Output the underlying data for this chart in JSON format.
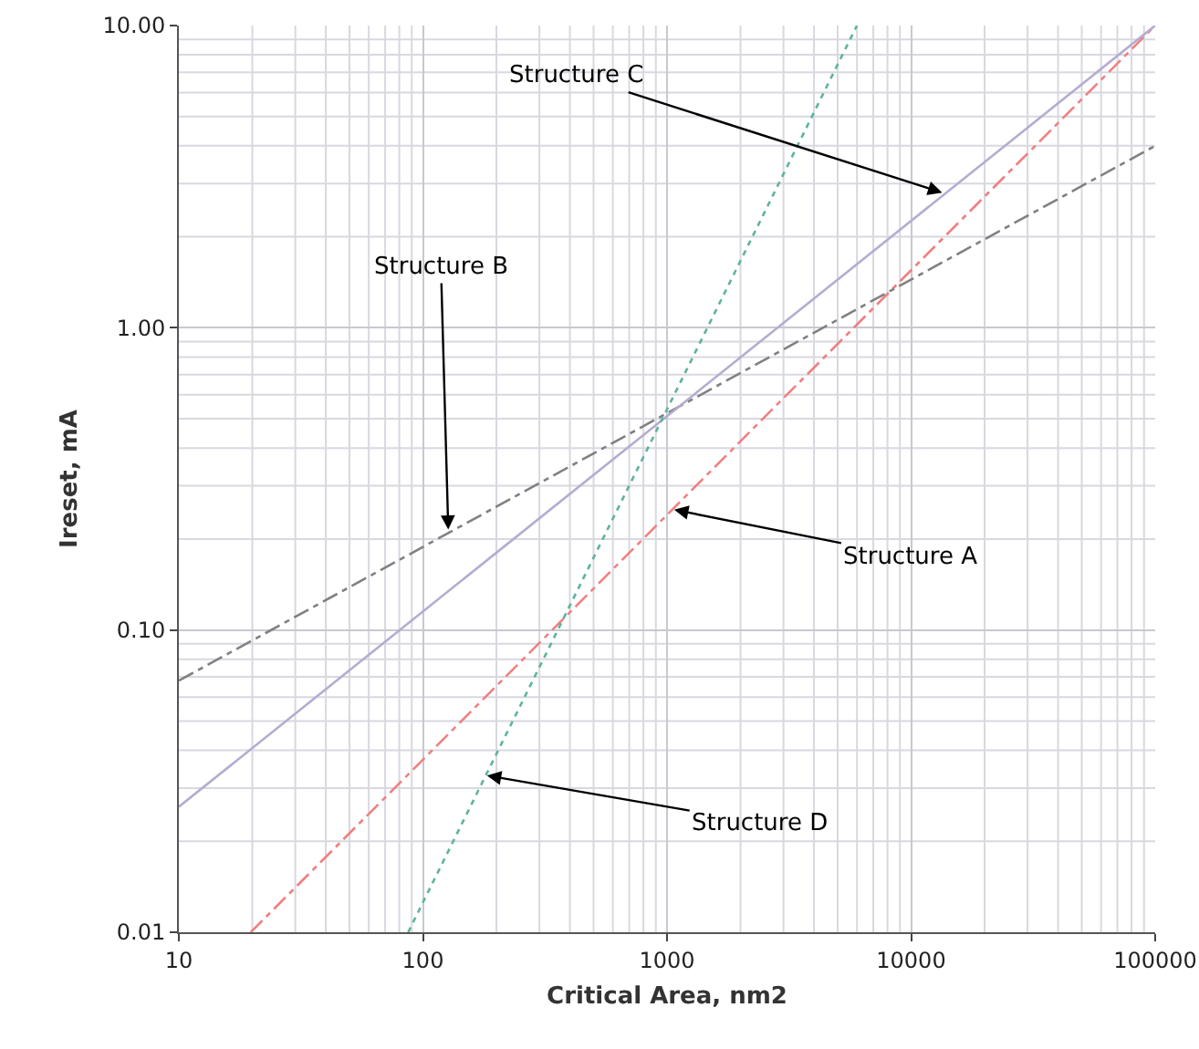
{
  "chart_data": {
    "type": "line",
    "xlabel": "Critical Area, nm2",
    "ylabel": "Ireset, mA",
    "log": "xy",
    "grid": true,
    "marker": "none",
    "xlim": [
      10,
      100000
    ],
    "xticks": [
      10,
      100,
      1000,
      10000,
      100000
    ],
    "ylim": [
      0.01,
      10
    ],
    "yticks": [
      {
        "value": 0.01,
        "label": "0.01"
      },
      {
        "value": 0.1,
        "label": "0.10"
      },
      {
        "value": 1,
        "label": "1.00"
      },
      {
        "value": 10,
        "label": "10.00"
      }
    ],
    "series": [
      {
        "color": "#f08080",
        "line_style": "dashed",
        "x": [
          19.7,
          100000
        ],
        "values": [
          0.01,
          10
        ]
      },
      {
        "color": "#808080",
        "line_style": "dashed",
        "x": [
          10,
          100000
        ],
        "values": [
          0.068,
          4.0
        ]
      },
      {
        "color": "#b4acd0",
        "line_style": "solid",
        "x": [
          10,
          100000
        ],
        "values": [
          0.026,
          10
        ]
      },
      {
        "color": "#5fb39c",
        "line_style": "dotted",
        "x": [
          87,
          6000
        ],
        "values": [
          0.01,
          10
        ]
      }
    ],
    "annotations": [
      {
        "text": "Structure C",
        "x": 13400,
        "y": 2.8
      },
      {
        "text": "Structure B",
        "x": 127,
        "y": 0.215
      },
      {
        "text": "Structure A",
        "x": 1070,
        "y": 0.25
      },
      {
        "text": "Structure D",
        "x": 183,
        "y": 0.033
      }
    ]
  }
}
